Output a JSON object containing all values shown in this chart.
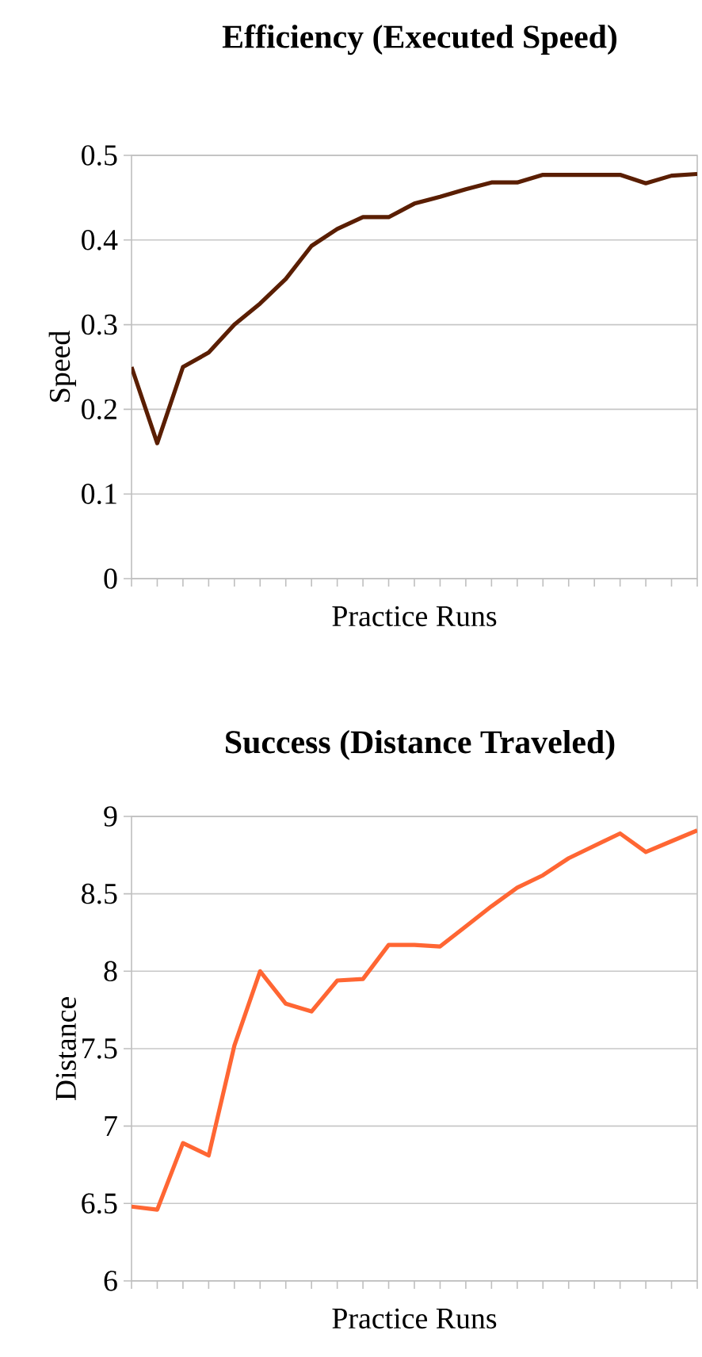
{
  "chart_data": [
    {
      "type": "line",
      "title": "Efficiency (Executed Speed)",
      "xlabel": "Practice Runs",
      "ylabel": "Speed",
      "categories": [
        null,
        null,
        null,
        null,
        null,
        null,
        null,
        null,
        null,
        null,
        null,
        null,
        null,
        null,
        null,
        null,
        null,
        null,
        null,
        null,
        null,
        null,
        null
      ],
      "values": [
        0.25,
        0.16,
        0.25,
        0.267,
        0.3,
        0.325,
        0.354,
        0.393,
        0.413,
        0.427,
        0.427,
        0.443,
        0.451,
        0.46,
        0.468,
        0.468,
        0.477,
        0.477,
        0.477,
        0.477,
        0.467,
        0.476,
        0.478
      ],
      "color": "#5a1e02",
      "ylim": [
        0,
        0.5
      ],
      "yticks": [
        0,
        0.1,
        0.2,
        0.3,
        0.4,
        0.5
      ],
      "grid": "y",
      "tick_labels": "y"
    },
    {
      "type": "line",
      "title": "Success (Distance Traveled)",
      "xlabel": "Practice Runs",
      "ylabel": "Distance",
      "categories": [
        null,
        null,
        null,
        null,
        null,
        null,
        null,
        null,
        null,
        null,
        null,
        null,
        null,
        null,
        null,
        null,
        null,
        null,
        null,
        null,
        null,
        null,
        null
      ],
      "values": [
        6.48,
        6.46,
        6.89,
        6.81,
        7.52,
        8.0,
        7.79,
        7.74,
        7.94,
        7.95,
        8.17,
        8.17,
        8.16,
        8.29,
        8.42,
        8.54,
        8.62,
        8.73,
        8.81,
        8.89,
        8.77,
        8.84,
        8.91
      ],
      "color": "#ff6633",
      "ylim": [
        6,
        9
      ],
      "yticks": [
        6,
        6.5,
        7,
        7.5,
        8,
        8.5,
        9
      ],
      "grid": "y",
      "tick_labels": "y"
    }
  ]
}
